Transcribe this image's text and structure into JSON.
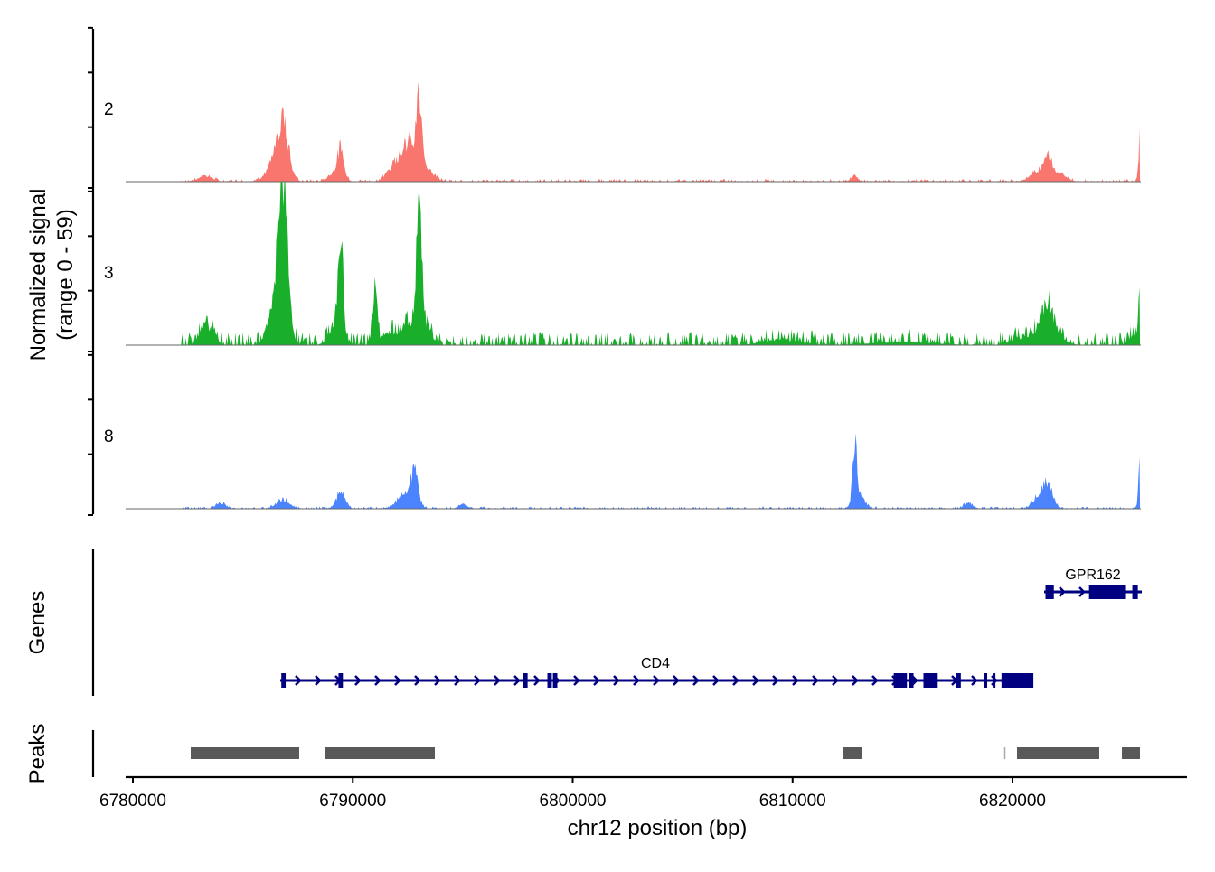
{
  "chart_data": {
    "type": "area",
    "title": "",
    "xlabel": "chr12 position (bp)",
    "ylabel": "Normalized signal\n(range 0 - 59)",
    "ylabel_lines": [
      "Normalized signal",
      "(range 0 - 59)"
    ],
    "xlim": [
      6779900,
      6828000
    ],
    "ylim": [
      0,
      59
    ],
    "x_ticks": [
      6780000,
      6790000,
      6800000,
      6810000,
      6820000
    ],
    "x_tick_labels": [
      "6780000",
      "6790000",
      "6800000",
      "6810000",
      "6820000"
    ],
    "signal_start": 6782200,
    "signal_end": 6825800,
    "tracks": [
      {
        "name": "2",
        "color": "#F8766D",
        "baseline": 0.6,
        "peaks": [
          [
            6786824,
            18,
            250
          ],
          [
            6786500,
            6,
            400
          ],
          [
            6789455,
            10,
            150
          ],
          [
            6789200,
            3,
            300
          ],
          [
            6791800,
            3,
            300
          ],
          [
            6792200,
            6,
            350
          ],
          [
            6792600,
            8,
            250
          ],
          [
            6793032,
            23,
            120
          ],
          [
            6793100,
            7,
            400
          ],
          [
            6783300,
            2,
            300
          ],
          [
            6812800,
            2,
            150
          ],
          [
            6821300,
            4,
            400
          ],
          [
            6821644,
            6,
            200
          ],
          [
            6822200,
            2,
            300
          ],
          [
            6825797,
            17,
            60
          ]
        ]
      },
      {
        "name": "3",
        "color": "#1AAF2A",
        "baseline": 3,
        "peaks": [
          [
            6783200,
            6,
            200
          ],
          [
            6783600,
            5,
            200
          ],
          [
            6786824,
            53,
            200
          ],
          [
            6786600,
            15,
            350
          ],
          [
            6789455,
            33,
            120
          ],
          [
            6789200,
            6,
            300
          ],
          [
            6791000,
            19,
            100
          ],
          [
            6791700,
            4,
            400
          ],
          [
            6792500,
            7,
            300
          ],
          [
            6793032,
            43,
            120
          ],
          [
            6793200,
            8,
            300
          ],
          [
            6821300,
            5,
            400
          ],
          [
            6821644,
            8,
            250
          ],
          [
            6822000,
            3,
            400
          ],
          [
            6825500,
            4,
            150
          ],
          [
            6825797,
            22,
            60
          ],
          [
            6809500,
            2,
            800
          ],
          [
            6815000,
            1,
            1500
          ],
          [
            6820400,
            2,
            500
          ]
        ]
      },
      {
        "name": "8",
        "color": "#4C84FF",
        "baseline": 0.5,
        "peaks": [
          [
            6786824,
            3,
            300
          ],
          [
            6789455,
            6,
            200
          ],
          [
            6792300,
            5,
            300
          ],
          [
            6792800,
            12,
            180
          ],
          [
            6812830,
            19,
            100
          ],
          [
            6813000,
            5,
            250
          ],
          [
            6818000,
            2,
            200
          ],
          [
            6821300,
            5,
            300
          ],
          [
            6821644,
            7,
            200
          ],
          [
            6825797,
            17,
            60
          ],
          [
            6784000,
            2,
            200
          ],
          [
            6795000,
            1.5,
            200
          ]
        ]
      }
    ],
    "genes_label": "Genes",
    "genes": [
      {
        "name": "CD4",
        "start": 6786701,
        "end": 6820822,
        "row": 2,
        "exons": [
          [
            6786750,
            6786950
          ],
          [
            6789350,
            6789550
          ],
          [
            6797750,
            6797950
          ],
          [
            6798850,
            6799050
          ],
          [
            6799100,
            6799300
          ],
          [
            6814600,
            6815200
          ],
          [
            6815300,
            6815500
          ],
          [
            6815950,
            6816600
          ],
          [
            6817450,
            6817650
          ],
          [
            6818700,
            6818850
          ],
          [
            6819100,
            6819200
          ],
          [
            6819500,
            6820950
          ]
        ]
      },
      {
        "name": "GPR162",
        "start": 6821440,
        "end": 6825880,
        "row": 1,
        "exons": [
          [
            6821500,
            6821880
          ],
          [
            6823480,
            6825120
          ],
          [
            6825450,
            6825700
          ]
        ]
      }
    ],
    "peaks_label": "Peaks",
    "peaks": [
      [
        6782631,
        6787564
      ],
      [
        6788715,
        6793731
      ],
      [
        6812313,
        6813176
      ],
      [
        6819620,
        6819660
      ],
      [
        6820206,
        6823947
      ],
      [
        6824975,
        6825797
      ]
    ],
    "peak_color": "#595959",
    "gene_color": "#000080"
  }
}
